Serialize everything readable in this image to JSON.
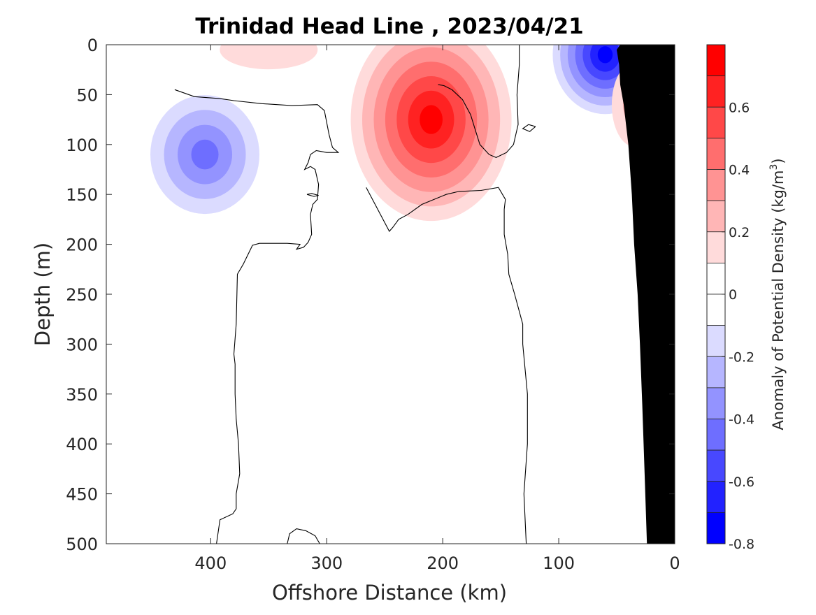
{
  "chart_data": {
    "type": "heatmap",
    "subtype": "filled-contour-section",
    "title": "Trinidad Head Line , 2023/04/21",
    "xlabel": "Offshore Distance (km)",
    "ylabel": "Depth (m)",
    "xlim": [
      490,
      0
    ],
    "ylim": [
      500,
      0
    ],
    "x_reversed": true,
    "y_reversed": true,
    "xticks": [
      {
        "value": 400,
        "label": "400"
      },
      {
        "value": 300,
        "label": "300"
      },
      {
        "value": 200,
        "label": "200"
      },
      {
        "value": 100,
        "label": "100"
      },
      {
        "value": 0,
        "label": "0"
      }
    ],
    "yticks": [
      {
        "value": 0,
        "label": "0"
      },
      {
        "value": 50,
        "label": "50"
      },
      {
        "value": 100,
        "label": "100"
      },
      {
        "value": 150,
        "label": "150"
      },
      {
        "value": 200,
        "label": "200"
      },
      {
        "value": 250,
        "label": "250"
      },
      {
        "value": 300,
        "label": "300"
      },
      {
        "value": 350,
        "label": "350"
      },
      {
        "value": 400,
        "label": "400"
      },
      {
        "value": 450,
        "label": "450"
      },
      {
        "value": 500,
        "label": "500"
      }
    ],
    "colorbar": {
      "label_main": "Anomaly of Potential Density (kg/m",
      "label_sup": "3",
      "label_end": ")",
      "range": [
        -0.8,
        0.8
      ],
      "levels": [
        {
          "from": 0.7,
          "to": 0.8,
          "color": "#ff0000"
        },
        {
          "from": 0.6,
          "to": 0.7,
          "color": "#ff2222"
        },
        {
          "from": 0.5,
          "to": 0.6,
          "color": "#ff4848"
        },
        {
          "from": 0.4,
          "to": 0.5,
          "color": "#ff6e6e"
        },
        {
          "from": 0.3,
          "to": 0.4,
          "color": "#ff9393"
        },
        {
          "from": 0.2,
          "to": 0.3,
          "color": "#ffb6b6"
        },
        {
          "from": 0.1,
          "to": 0.2,
          "color": "#ffdbdb"
        },
        {
          "from": 0.0,
          "to": 0.1,
          "color": "#ffffff"
        },
        {
          "from": -0.1,
          "to": 0.0,
          "color": "#ffffff"
        },
        {
          "from": -0.2,
          "to": -0.1,
          "color": "#dbdbff"
        },
        {
          "from": -0.3,
          "to": -0.2,
          "color": "#b6b6ff"
        },
        {
          "from": -0.4,
          "to": -0.3,
          "color": "#9393ff"
        },
        {
          "from": -0.5,
          "to": -0.4,
          "color": "#6e6eff"
        },
        {
          "from": -0.6,
          "to": -0.5,
          "color": "#4848ff"
        },
        {
          "from": -0.7,
          "to": -0.6,
          "color": "#2222ff"
        },
        {
          "from": -0.8,
          "to": -0.7,
          "color": "#0000ff"
        }
      ],
      "ticks": [
        {
          "value": 0.6,
          "label": "0.6"
        },
        {
          "value": 0.4,
          "label": "0.4"
        },
        {
          "value": 0.2,
          "label": "0.2"
        },
        {
          "value": 0,
          "label": "0"
        },
        {
          "value": -0.2,
          "label": "-0.2"
        },
        {
          "value": -0.4,
          "label": "-0.4"
        },
        {
          "value": -0.6,
          "label": "-0.6"
        },
        {
          "value": -0.8,
          "label": "-0.8"
        }
      ]
    },
    "features": [
      {
        "name": "positive-core-offshore-200km",
        "x": 210,
        "depth": 75,
        "peak": 0.8
      },
      {
        "name": "negative-eddy-offshore-410km",
        "x": 405,
        "depth": 110,
        "peak": -0.5
      },
      {
        "name": "negative-near-surface-inshore",
        "x": 60,
        "depth": 10,
        "peak": -0.8
      },
      {
        "name": "positive-near-surface-inshore",
        "x": 35,
        "depth": 60,
        "peak": 0.3
      },
      {
        "name": "positive-surface-340km",
        "x": 350,
        "depth": 5,
        "peak": 0.2
      }
    ],
    "zero_contours": [
      {
        "name": "zero-contour-west",
        "points": [
          [
            431,
            45
          ],
          [
            414,
            52
          ],
          [
            392,
            54
          ],
          [
            380,
            56
          ],
          [
            356,
            59
          ],
          [
            330,
            61
          ],
          [
            308,
            60
          ],
          [
            302,
            66
          ],
          [
            298,
            90
          ],
          [
            295,
            103
          ],
          [
            290,
            108
          ],
          [
            300,
            108
          ],
          [
            309,
            106
          ],
          [
            314,
            110
          ],
          [
            316,
            118
          ],
          [
            319,
            125
          ],
          [
            314,
            122
          ],
          [
            310,
            125
          ],
          [
            307,
            140
          ],
          [
            308,
            155
          ],
          [
            312,
            160
          ],
          [
            314,
            170
          ],
          [
            313,
            190
          ],
          [
            316,
            198
          ],
          [
            320,
            203
          ],
          [
            326,
            205
          ],
          [
            323,
            200
          ],
          [
            334,
            199
          ],
          [
            349,
            199
          ],
          [
            358,
            199
          ],
          [
            364,
            201
          ],
          [
            372,
            220
          ],
          [
            377,
            230
          ],
          [
            378,
            280
          ],
          [
            380,
            310
          ],
          [
            379,
            320
          ],
          [
            379,
            350
          ],
          [
            378,
            375
          ],
          [
            376,
            400
          ],
          [
            375,
            430
          ],
          [
            378,
            450
          ],
          [
            378,
            465
          ],
          [
            381,
            470
          ],
          [
            392,
            476
          ],
          [
            395,
            500
          ]
        ]
      },
      {
        "name": "zero-contour-bottom-bump",
        "points": [
          [
            306,
            500
          ],
          [
            310,
            492
          ],
          [
            318,
            487
          ],
          [
            326,
            485
          ],
          [
            332,
            490
          ],
          [
            334,
            500
          ]
        ]
      },
      {
        "name": "zero-contour-tiny-loop",
        "points": [
          [
            317,
            150
          ],
          [
            313,
            149
          ],
          [
            307,
            151
          ],
          [
            311,
            152
          ],
          [
            317,
            150
          ]
        ]
      },
      {
        "name": "zero-contour-mid-east",
        "points": [
          [
            128,
            500
          ],
          [
            130,
            450
          ],
          [
            127,
            400
          ],
          [
            127,
            350
          ],
          [
            131,
            300
          ],
          [
            131,
            280
          ],
          [
            138,
            250
          ],
          [
            143,
            230
          ],
          [
            144,
            210
          ],
          [
            147,
            190
          ],
          [
            147,
            165
          ],
          [
            146,
            155
          ],
          [
            152,
            143
          ],
          [
            167,
            146
          ],
          [
            186,
            147
          ],
          [
            197,
            150
          ],
          [
            218,
            160
          ],
          [
            230,
            170
          ],
          [
            238,
            175
          ],
          [
            243,
            183
          ],
          [
            246,
            187
          ],
          [
            266,
            143
          ]
        ]
      },
      {
        "name": "zero-contour-east-upper",
        "points": [
          [
            134,
            0
          ],
          [
            134,
            20
          ],
          [
            136,
            50
          ],
          [
            135,
            80
          ],
          [
            139,
            100
          ],
          [
            145,
            108
          ],
          [
            154,
            113
          ],
          [
            160,
            110
          ],
          [
            168,
            100
          ],
          [
            172,
            85
          ],
          [
            176,
            70
          ],
          [
            183,
            55
          ],
          [
            192,
            45
          ],
          [
            199,
            41
          ],
          [
            204,
            40
          ]
        ]
      },
      {
        "name": "zero-contour-small-loop",
        "points": [
          [
            120,
            82
          ],
          [
            126,
            80
          ],
          [
            131,
            84
          ],
          [
            125,
            87
          ],
          [
            120,
            82
          ]
        ]
      }
    ],
    "bathymetry": {
      "name": "seafloor-shelf",
      "color": "#000000",
      "points": [
        [
          0,
          0
        ],
        [
          0,
          500
        ],
        [
          24,
          500
        ],
        [
          26,
          430
        ],
        [
          28,
          360
        ],
        [
          30,
          300
        ],
        [
          32,
          250
        ],
        [
          35,
          200
        ],
        [
          37,
          150
        ],
        [
          40,
          100
        ],
        [
          44,
          60
        ],
        [
          47,
          40
        ],
        [
          48,
          20
        ],
        [
          50,
          5
        ],
        [
          47,
          0
        ]
      ]
    }
  }
}
